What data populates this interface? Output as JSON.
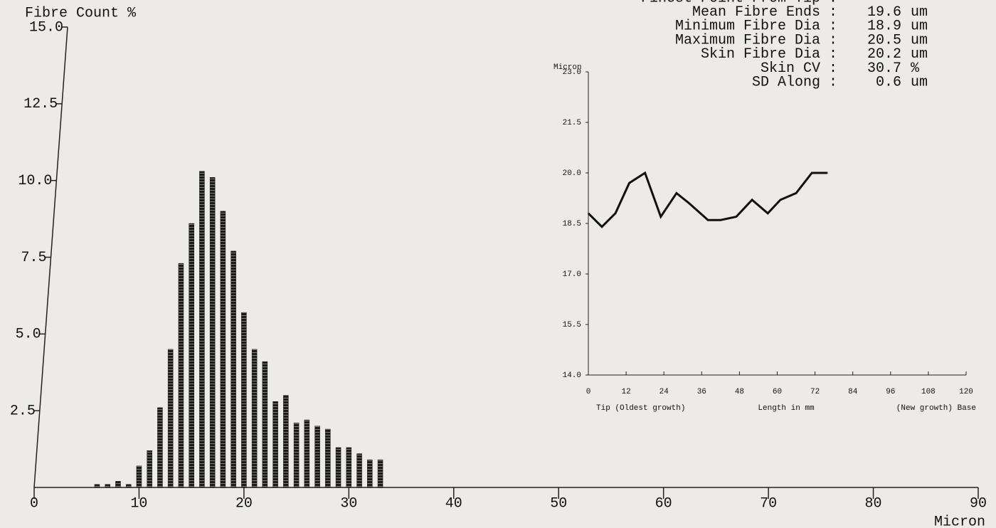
{
  "chart_data": [
    {
      "type": "bar",
      "y_label": "Fibre Count %",
      "x_label": "Micron",
      "x": [
        6,
        7,
        8,
        9,
        10,
        11,
        12,
        13,
        14,
        15,
        16,
        17,
        18,
        19,
        20,
        21,
        22,
        23,
        24,
        25,
        26,
        27,
        28,
        29,
        30,
        31,
        32,
        33
      ],
      "values": [
        0.1,
        0.1,
        0.2,
        0.1,
        0.7,
        1.2,
        2.6,
        4.5,
        7.3,
        8.6,
        10.3,
        10.1,
        9.0,
        7.7,
        5.7,
        4.5,
        4.1,
        2.8,
        3.0,
        2.1,
        2.2,
        2.0,
        1.9,
        1.3,
        1.3,
        1.1,
        0.9,
        0.9
      ],
      "color": "#1a1a1a",
      "xlim": [
        0,
        90
      ],
      "xticks": [
        0,
        10,
        20,
        30,
        40,
        50,
        60,
        70,
        80,
        90
      ],
      "ylim": [
        0,
        15
      ],
      "yticks": [
        2.5,
        {
          "value": 5,
          "label": "5.0"
        },
        7.5,
        {
          "value": 10,
          "label": "10.0"
        },
        12.5,
        {
          "value": 15,
          "label": "15.0"
        }
      ]
    },
    {
      "type": "line",
      "y_label": "Micron",
      "x_label": "Length in mm",
      "x_left_label": "Tip (Oldest growth)",
      "x_right_label": "(New growth) Base",
      "x": [
        0,
        4.3,
        8.6,
        13,
        18,
        23,
        28,
        32,
        38,
        42,
        47,
        52,
        57,
        61,
        66,
        71,
        76
      ],
      "values": [
        18.8,
        18.4,
        18.8,
        19.7,
        20.0,
        18.7,
        19.4,
        19.1,
        18.6,
        18.6,
        18.7,
        19.2,
        18.8,
        19.2,
        19.4,
        20.0,
        20.0
      ],
      "color": "#111111",
      "xlim": [
        0,
        120
      ],
      "xticks": [
        0,
        12,
        24,
        36,
        48,
        60,
        72,
        84,
        96,
        108,
        120
      ],
      "ylim": [
        14,
        23
      ],
      "yticks": [
        {
          "value": 14,
          "label": "14.0"
        },
        15.5,
        {
          "value": 17,
          "label": "17.0"
        },
        18.5,
        {
          "value": 20,
          "label": "20.0"
        },
        21.5,
        {
          "value": 23,
          "label": "23.0"
        }
      ]
    }
  ],
  "stats": [
    {
      "label": "Finest Point From Tip :"
    },
    {
      "label": "Mean Fibre Ends :",
      "value": 19.6,
      "unit": "um"
    },
    {
      "label": "Minimum Fibre Dia :",
      "value": 18.9,
      "unit": "um"
    },
    {
      "label": "Maximum Fibre Dia :",
      "value": 20.5,
      "unit": "um"
    },
    {
      "label": "Skin Fibre Dia :",
      "value": 20.2,
      "unit": "um"
    },
    {
      "label": "Skin CV :",
      "value": 30.7,
      "unit": "%"
    },
    {
      "label": "SD Along :",
      "value": 0.6,
      "unit": "um"
    }
  ]
}
